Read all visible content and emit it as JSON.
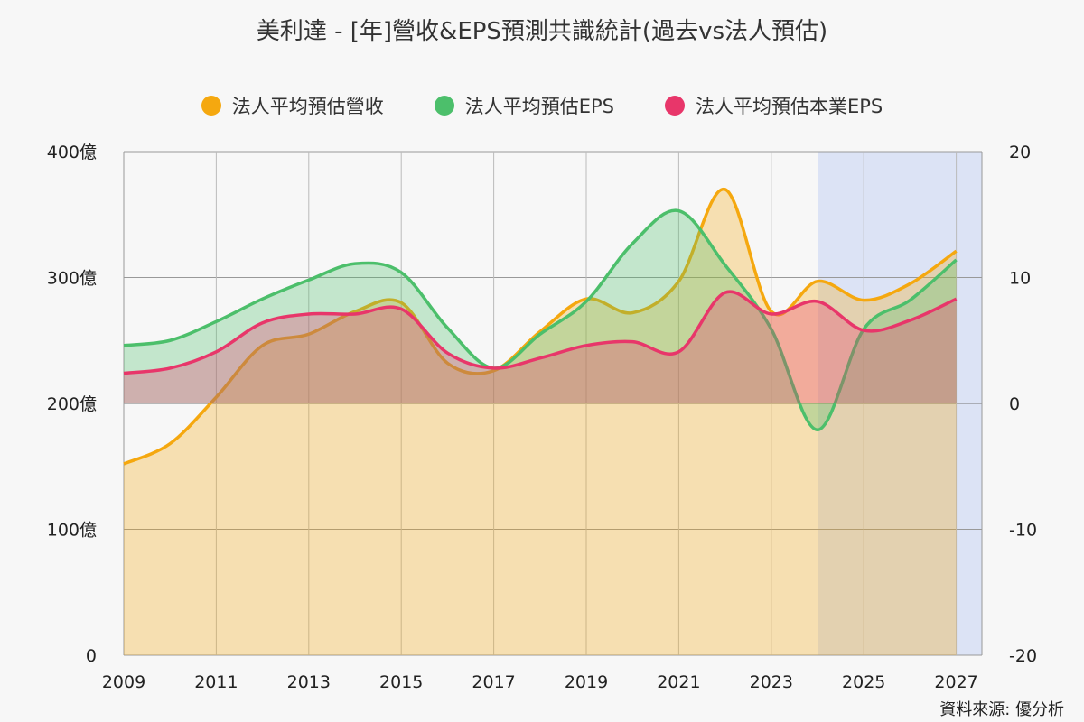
{
  "title": "美利達 - [年]營收&EPS預測共識統計(過去vs法人預估)",
  "source": "資料來源: 優分析",
  "legend": [
    {
      "label": "法人平均預估營收",
      "color": "#f5a80f"
    },
    {
      "label": "法人平均預估EPS",
      "color": "#4cbf6b"
    },
    {
      "label": "法人平均預估本業EPS",
      "color": "#e8366a"
    }
  ],
  "chart_data": {
    "type": "area",
    "title": "美利達 - [年]營收&EPS預測共識統計(過去vs法人預估)",
    "x": [
      2009,
      2010,
      2011,
      2012,
      2013,
      2014,
      2015,
      2016,
      2017,
      2018,
      2019,
      2020,
      2021,
      2022,
      2023,
      2024,
      2025,
      2026,
      2027
    ],
    "x_ticks": [
      "2009",
      "2011",
      "2013",
      "2015",
      "2017",
      "2019",
      "2021",
      "2023",
      "2025",
      "2027"
    ],
    "forecast_range": [
      2024,
      2027
    ],
    "left_axis": {
      "ylim": [
        0,
        400
      ],
      "ticks": [
        "0",
        "100億",
        "200億",
        "300億",
        "400億"
      ]
    },
    "right_axis": {
      "ylim": [
        -20,
        20
      ],
      "ticks": [
        "-20",
        "-10",
        "0",
        "10",
        "20"
      ]
    },
    "grid": true,
    "legend_position": "top",
    "series": [
      {
        "name": "法人平均預估營收",
        "axis": "left",
        "unit": "億",
        "color": "#f5a80f",
        "values": [
          152,
          168,
          205,
          246,
          255,
          273,
          280,
          232,
          226,
          257,
          283,
          272,
          297,
          370,
          273,
          297,
          282,
          295,
          321
        ]
      },
      {
        "name": "法人平均預估EPS",
        "axis": "right",
        "color": "#4cbf6b",
        "values": [
          4.6,
          5.0,
          6.5,
          8.3,
          9.8,
          11.1,
          10.4,
          6.0,
          2.8,
          5.5,
          8.1,
          12.7,
          15.3,
          11.0,
          5.9,
          -2.1,
          5.9,
          8.2,
          11.4
        ]
      },
      {
        "name": "法人平均預估本業EPS",
        "axis": "right",
        "color": "#e8366a",
        "values": [
          2.4,
          2.8,
          4.1,
          6.4,
          7.1,
          7.1,
          7.5,
          4.0,
          2.8,
          3.6,
          4.6,
          4.9,
          4.1,
          8.8,
          7.1,
          8.1,
          5.8,
          6.6,
          8.3
        ]
      }
    ]
  }
}
